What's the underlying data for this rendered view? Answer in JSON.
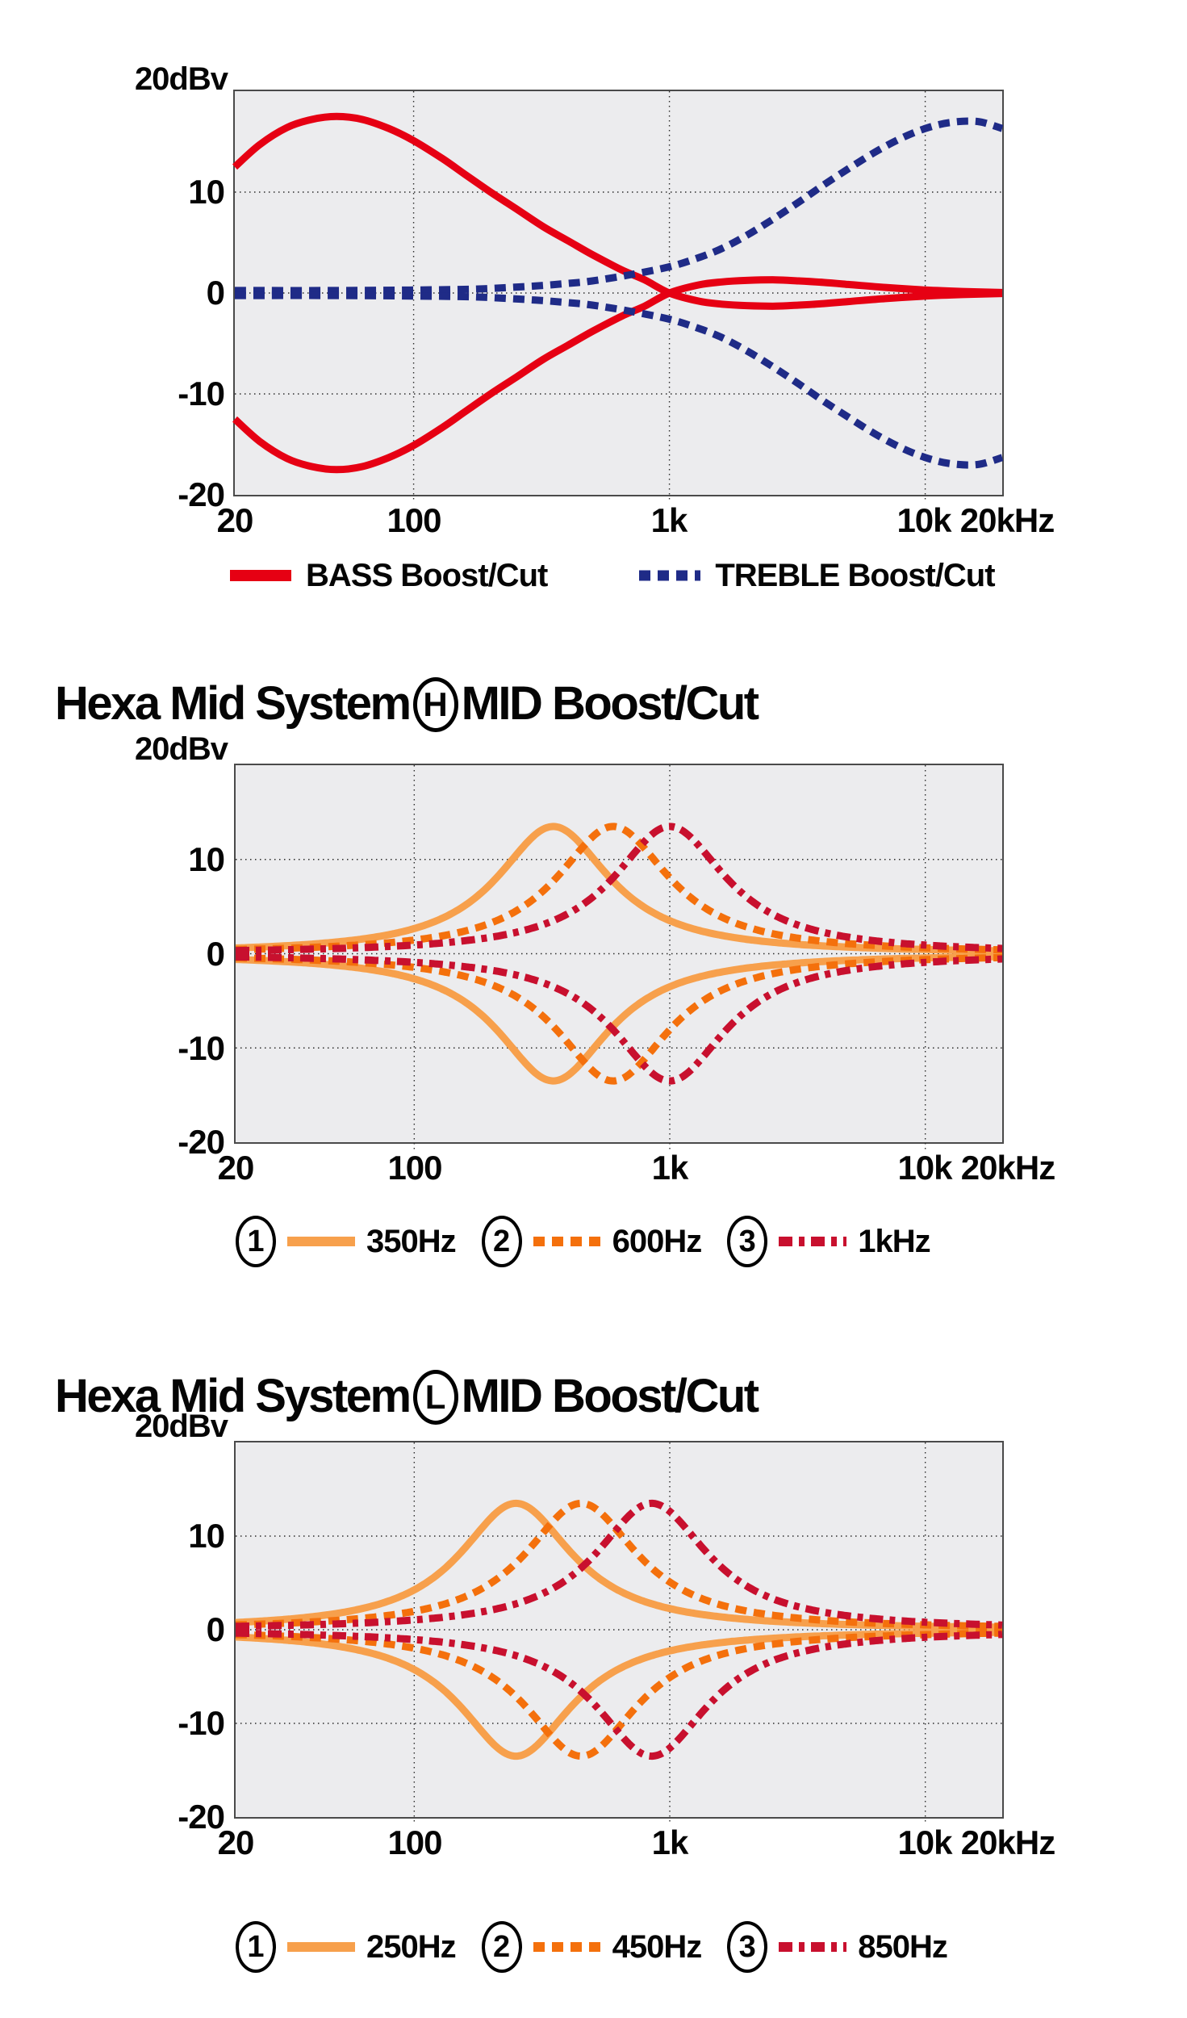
{
  "page_bg": "#ffffff",
  "plot_bg": "#ececee",
  "grid_color": "#2b2b2b",
  "chart_data": [
    {
      "type": "line",
      "id": "tone-boost-cut",
      "x_axis": {
        "scale": "log",
        "min_hz": 20,
        "max_hz": 20000,
        "ticks": [
          {
            "hz": 20,
            "label": "20"
          },
          {
            "hz": 100,
            "label": "100"
          },
          {
            "hz": 1000,
            "label": "1k"
          },
          {
            "hz": 10000,
            "label": "10k"
          },
          {
            "hz": 20000,
            "label": "20kHz"
          }
        ]
      },
      "y_axis": {
        "unit_label": "20dBv",
        "min_db": -20,
        "max_db": 20,
        "ticks": [
          {
            "value": 10,
            "label": "10"
          },
          {
            "value": 0,
            "label": "0"
          },
          {
            "value": -10,
            "label": "-10"
          },
          {
            "value": -20,
            "label": "-20"
          }
        ]
      },
      "grid": {
        "x_hz": [
          100,
          1000,
          10000
        ],
        "y_db": [
          10,
          0,
          -10
        ]
      },
      "series": [
        {
          "id": "bass",
          "label": "BASS Boost/Cut",
          "color": "#e60013",
          "dash": "solid",
          "stroke_width": 9,
          "mirror": true,
          "points_hz_db": [
            [
              20,
              12.5
            ],
            [
              25,
              14.7
            ],
            [
              32,
              16.4
            ],
            [
              40,
              17.2
            ],
            [
              50,
              17.5
            ],
            [
              63,
              17.2
            ],
            [
              80,
              16.3
            ],
            [
              100,
              15.1
            ],
            [
              130,
              13.3
            ],
            [
              160,
              11.7
            ],
            [
              200,
              10.0
            ],
            [
              250,
              8.4
            ],
            [
              320,
              6.6
            ],
            [
              400,
              5.2
            ],
            [
              500,
              3.8
            ],
            [
              650,
              2.3
            ],
            [
              800,
              1.3
            ],
            [
              1000,
              0.0
            ],
            [
              1300,
              -0.8
            ],
            [
              1600,
              -1.1
            ],
            [
              2000,
              -1.25
            ],
            [
              2600,
              -1.3
            ],
            [
              3200,
              -1.2
            ],
            [
              4000,
              -1.05
            ],
            [
              5000,
              -0.85
            ],
            [
              7000,
              -0.55
            ],
            [
              10000,
              -0.3
            ],
            [
              14000,
              -0.15
            ],
            [
              20000,
              -0.05
            ]
          ]
        },
        {
          "id": "treble",
          "label": "TREBLE Boost/Cut",
          "color": "#1f2b87",
          "dash": "dashed",
          "stroke_width": 9,
          "mirror": true,
          "points_hz_db": [
            [
              20,
              0.25
            ],
            [
              50,
              0.25
            ],
            [
              100,
              0.3
            ],
            [
              150,
              0.35
            ],
            [
              200,
              0.45
            ],
            [
              300,
              0.7
            ],
            [
              400,
              0.95
            ],
            [
              500,
              1.2
            ],
            [
              700,
              1.8
            ],
            [
              1000,
              2.6
            ],
            [
              1300,
              3.5
            ],
            [
              1600,
              4.4
            ],
            [
              2000,
              5.7
            ],
            [
              2500,
              7.2
            ],
            [
              3200,
              9.0
            ],
            [
              4000,
              10.7
            ],
            [
              5000,
              12.3
            ],
            [
              6300,
              13.9
            ],
            [
              8000,
              15.3
            ],
            [
              10000,
              16.3
            ],
            [
              12500,
              16.9
            ],
            [
              16000,
              17.0
            ],
            [
              20000,
              16.3
            ]
          ]
        }
      ],
      "legend": [
        {
          "id": "bass",
          "label": "BASS Boost/Cut",
          "color": "#e60013",
          "dash": "solid",
          "stroke_width": 14
        },
        {
          "id": "treble",
          "label": "TREBLE Boost/Cut",
          "color": "#1f2b87",
          "dash": "dashed",
          "stroke_width": 13
        }
      ]
    },
    {
      "type": "line",
      "id": "hexa-mid-h",
      "title": {
        "prefix": "Hexa Mid System",
        "circled_letter": "H",
        "suffix": "MID Boost/Cut"
      },
      "x_axis": {
        "scale": "log",
        "min_hz": 20,
        "max_hz": 20000,
        "ticks": [
          {
            "hz": 20,
            "label": "20"
          },
          {
            "hz": 100,
            "label": "100"
          },
          {
            "hz": 1000,
            "label": "1k"
          },
          {
            "hz": 10000,
            "label": "10k"
          },
          {
            "hz": 20000,
            "label": "20kHz"
          }
        ]
      },
      "y_axis": {
        "unit_label": "20dBv",
        "min_db": -20,
        "max_db": 20,
        "ticks": [
          {
            "value": 10,
            "label": "10"
          },
          {
            "value": 0,
            "label": "0"
          },
          {
            "value": -10,
            "label": "-10"
          },
          {
            "value": -20,
            "label": "-20"
          }
        ]
      },
      "grid": {
        "x_hz": [
          100,
          1000,
          10000
        ],
        "y_db": [
          10,
          0,
          -10
        ]
      },
      "series": [
        {
          "id": "mid-h-350hz",
          "label": "350Hz",
          "color": "#f7a04c",
          "dash": "solid",
          "stroke_width": 9,
          "mirror": true,
          "peak": {
            "f0_hz": 350,
            "gain_db": 13.5,
            "width_decades": 0.27
          }
        },
        {
          "id": "mid-h-600hz",
          "label": "600Hz",
          "color": "#f4700c",
          "dash": "dashed",
          "stroke_width": 9,
          "mirror": true,
          "peak": {
            "f0_hz": 600,
            "gain_db": 13.5,
            "width_decades": 0.27
          }
        },
        {
          "id": "mid-h-1khz",
          "label": "1kHz",
          "color": "#c8102e",
          "dash": "dashdot",
          "stroke_width": 9,
          "mirror": true,
          "peak": {
            "f0_hz": 1000,
            "gain_db": 13.5,
            "width_decades": 0.27
          }
        }
      ],
      "legend": [
        {
          "id": "mid-h-350hz",
          "num": "1",
          "label": "350Hz",
          "color": "#f7a04c",
          "dash": "solid",
          "stroke_width": 12
        },
        {
          "id": "mid-h-600hz",
          "num": "2",
          "label": "600Hz",
          "color": "#f4700c",
          "dash": "dashed",
          "stroke_width": 12
        },
        {
          "id": "mid-h-1khz",
          "num": "3",
          "label": "1kHz",
          "color": "#c8102e",
          "dash": "dashdot",
          "stroke_width": 12
        }
      ]
    },
    {
      "type": "line",
      "id": "hexa-mid-l",
      "title": {
        "prefix": "Hexa Mid System",
        "circled_letter": "L",
        "suffix": "MID Boost/Cut"
      },
      "x_axis": {
        "scale": "log",
        "min_hz": 20,
        "max_hz": 20000,
        "ticks": [
          {
            "hz": 20,
            "label": "20"
          },
          {
            "hz": 100,
            "label": "100"
          },
          {
            "hz": 1000,
            "label": "1k"
          },
          {
            "hz": 10000,
            "label": "10k"
          },
          {
            "hz": 20000,
            "label": "20kHz"
          }
        ]
      },
      "y_axis": {
        "unit_label": "20dBv",
        "min_db": -20,
        "max_db": 20,
        "ticks": [
          {
            "value": 10,
            "label": "10"
          },
          {
            "value": 0,
            "label": "0"
          },
          {
            "value": -10,
            "label": "-10"
          },
          {
            "value": -20,
            "label": "-20"
          }
        ]
      },
      "grid": {
        "x_hz": [
          100,
          1000,
          10000
        ],
        "y_db": [
          10,
          0,
          -10
        ]
      },
      "series": [
        {
          "id": "mid-l-250hz",
          "label": "250Hz",
          "color": "#f7a04c",
          "dash": "solid",
          "stroke_width": 9,
          "mirror": true,
          "peak": {
            "f0_hz": 250,
            "gain_db": 13.5,
            "width_decades": 0.27
          }
        },
        {
          "id": "mid-l-450hz",
          "label": "450Hz",
          "color": "#f4700c",
          "dash": "dashed",
          "stroke_width": 9,
          "mirror": true,
          "peak": {
            "f0_hz": 450,
            "gain_db": 13.5,
            "width_decades": 0.27
          }
        },
        {
          "id": "mid-l-850hz",
          "label": "850Hz",
          "color": "#c8102e",
          "dash": "dashdot",
          "stroke_width": 9,
          "mirror": true,
          "peak": {
            "f0_hz": 850,
            "gain_db": 13.5,
            "width_decades": 0.27
          }
        }
      ],
      "legend": [
        {
          "id": "mid-l-250hz",
          "num": "1",
          "label": "250Hz",
          "color": "#f7a04c",
          "dash": "solid",
          "stroke_width": 12
        },
        {
          "id": "mid-l-450hz",
          "num": "2",
          "label": "450Hz",
          "color": "#f4700c",
          "dash": "dashed",
          "stroke_width": 12
        },
        {
          "id": "mid-l-850hz",
          "num": "3",
          "label": "850Hz",
          "color": "#c8102e",
          "dash": "dashdot",
          "stroke_width": 12
        }
      ]
    }
  ]
}
